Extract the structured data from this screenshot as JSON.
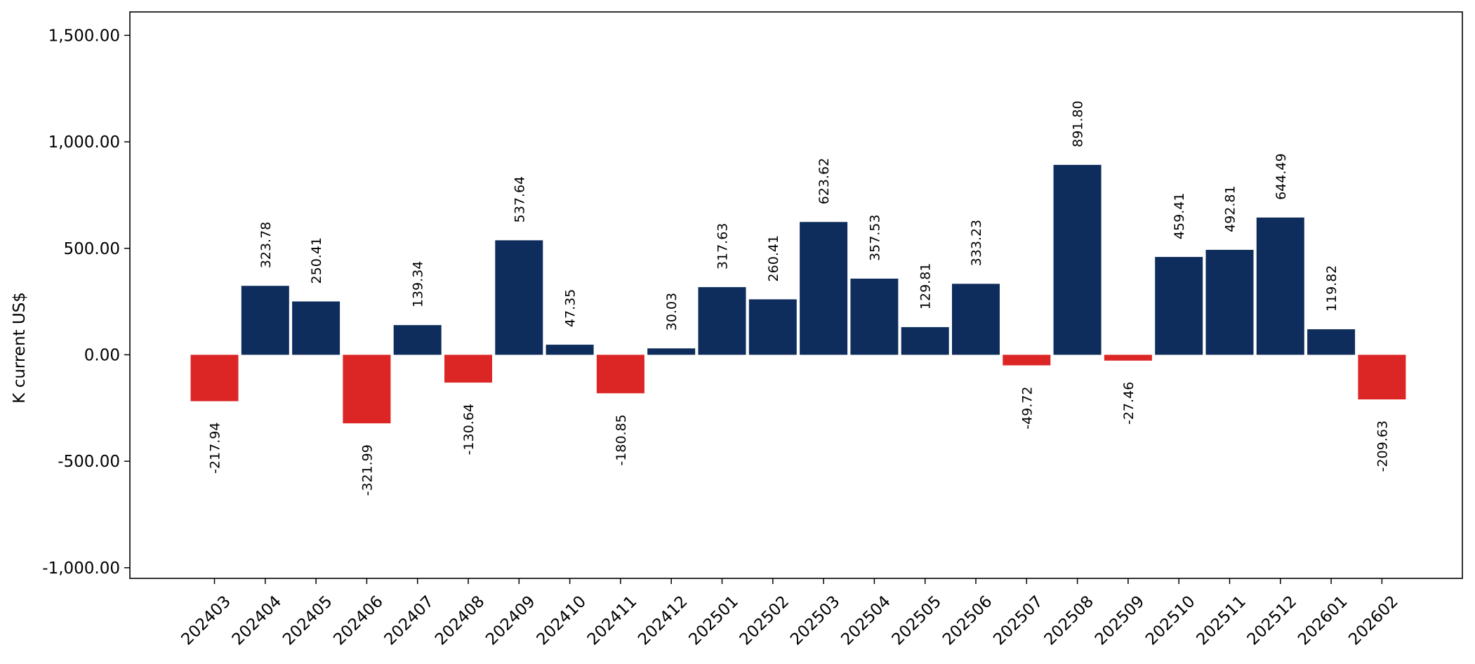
{
  "chart_data": {
    "type": "bar",
    "title": "",
    "xlabel": "",
    "ylabel": "K current US$",
    "ylim": [
      -1050,
      1610
    ],
    "yticks": [
      -1000,
      -500,
      0,
      500,
      1000,
      1500
    ],
    "ytick_labels": [
      "-1,000.00",
      "-500.00",
      "0.00",
      "500.00",
      "1,000.00",
      "1,500.00"
    ],
    "grid": false,
    "legend": "none",
    "categories": [
      "202403",
      "202404",
      "202405",
      "202406",
      "202407",
      "202408",
      "202409",
      "202410",
      "202411",
      "202412",
      "202501",
      "202502",
      "202503",
      "202504",
      "202505",
      "202506",
      "202507",
      "202508",
      "202509",
      "202510",
      "202511",
      "202512",
      "202601",
      "202602"
    ],
    "values": [
      -217.94,
      323.78,
      250.41,
      -321.99,
      139.34,
      -130.64,
      537.64,
      47.35,
      -180.85,
      30.03,
      317.63,
      260.41,
      623.62,
      357.53,
      129.81,
      333.23,
      -49.72,
      891.8,
      -27.46,
      459.41,
      492.81,
      644.49,
      119.82,
      -209.63
    ],
    "value_labels": [
      "-217.94",
      "323.78",
      "250.41",
      "-321.99",
      "139.34",
      "-130.64",
      "537.64",
      "47.35",
      "-180.85",
      "30.03",
      "317.63",
      "260.41",
      "623.62",
      "357.53",
      "129.81",
      "333.23",
      "-49.72",
      "891.80",
      "-27.46",
      "459.41",
      "492.81",
      "644.49",
      "119.82",
      "-209.63"
    ],
    "colors": {
      "positive": "#0e2d5c",
      "negative": "#dc2626"
    }
  }
}
